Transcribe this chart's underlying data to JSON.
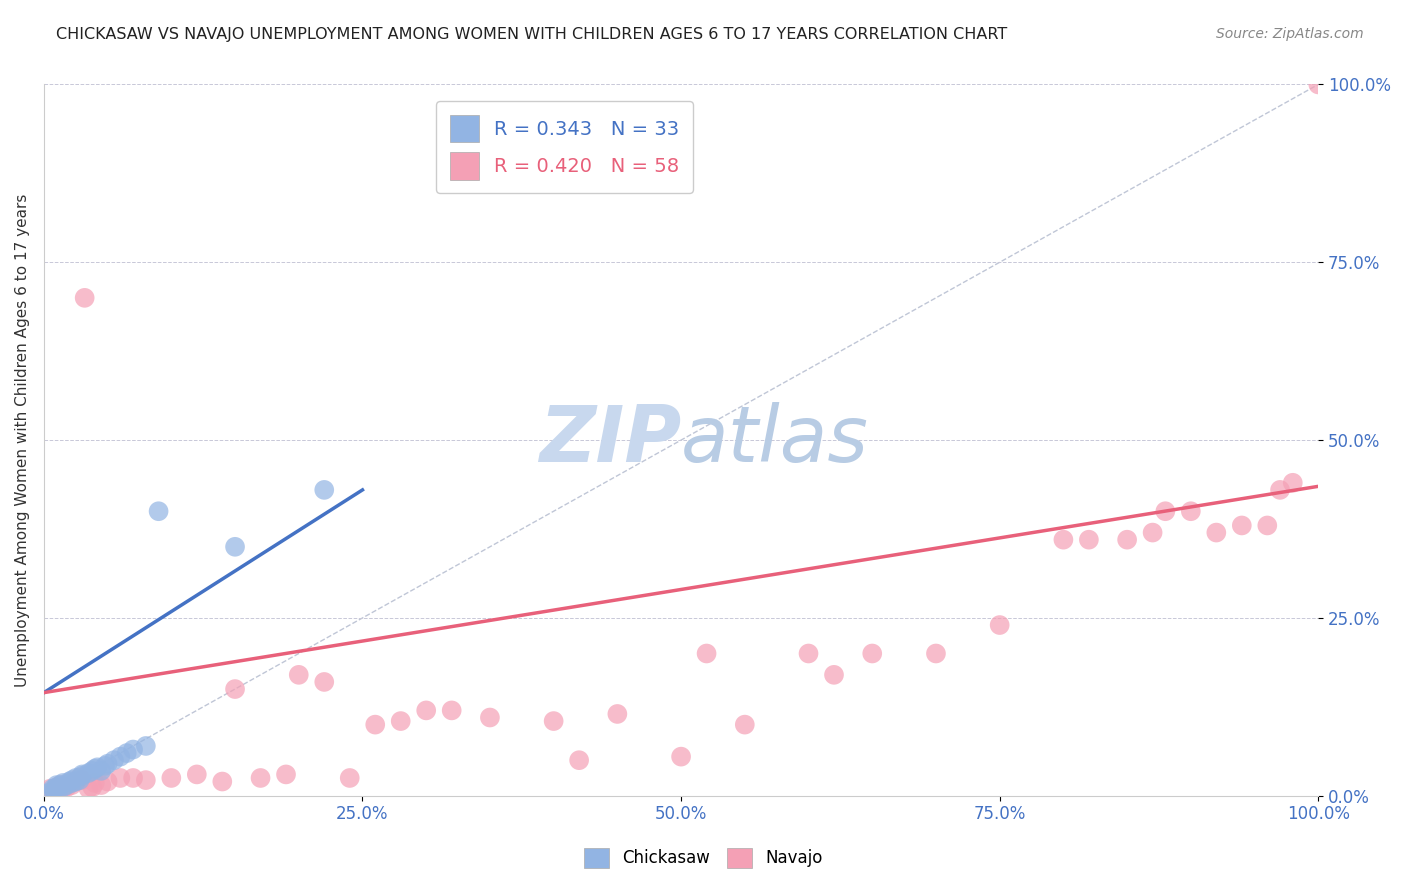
{
  "title": "CHICKASAW VS NAVAJO UNEMPLOYMENT AMONG WOMEN WITH CHILDREN AGES 6 TO 17 YEARS CORRELATION CHART",
  "source_text": "Source: ZipAtlas.com",
  "ylabel": "Unemployment Among Women with Children Ages 6 to 17 years",
  "xlim": [
    0,
    1
  ],
  "ylim": [
    0,
    1
  ],
  "xticks": [
    0.0,
    0.25,
    0.5,
    0.75,
    1.0
  ],
  "yticks": [
    0.0,
    0.25,
    0.5,
    0.75,
    1.0
  ],
  "xticklabels": [
    "0.0%",
    "25.0%",
    "50.0%",
    "75.0%",
    "100.0%"
  ],
  "yticklabels": [
    "0.0%",
    "25.0%",
    "50.0%",
    "75.0%",
    "100.0%"
  ],
  "chickasaw_color": "#92b4e3",
  "navajo_color": "#f4a0b5",
  "chickasaw_line_color": "#4472c4",
  "navajo_line_color": "#e8607a",
  "diagonal_color": "#b0b8cc",
  "watermark_color": "#d0dcee",
  "legend_R1": "R = 0.343",
  "legend_N1": "N = 33",
  "legend_R2": "R = 0.420",
  "legend_N2": "N = 58",
  "chickasaw_x": [
    0.005,
    0.007,
    0.008,
    0.01,
    0.01,
    0.012,
    0.013,
    0.015,
    0.015,
    0.018,
    0.02,
    0.022,
    0.022,
    0.025,
    0.025,
    0.028,
    0.03,
    0.03,
    0.035,
    0.038,
    0.04,
    0.042,
    0.045,
    0.048,
    0.05,
    0.055,
    0.06,
    0.065,
    0.07,
    0.08,
    0.09,
    0.15,
    0.22
  ],
  "chickasaw_y": [
    0.005,
    0.01,
    0.008,
    0.012,
    0.015,
    0.01,
    0.015,
    0.012,
    0.018,
    0.015,
    0.02,
    0.018,
    0.022,
    0.02,
    0.025,
    0.022,
    0.028,
    0.03,
    0.032,
    0.035,
    0.038,
    0.04,
    0.035,
    0.042,
    0.045,
    0.05,
    0.055,
    0.06,
    0.065,
    0.07,
    0.4,
    0.35,
    0.43
  ],
  "navajo_x": [
    0.005,
    0.008,
    0.01,
    0.012,
    0.013,
    0.015,
    0.018,
    0.02,
    0.022,
    0.025,
    0.028,
    0.03,
    0.032,
    0.035,
    0.038,
    0.04,
    0.045,
    0.05,
    0.06,
    0.07,
    0.08,
    0.1,
    0.12,
    0.14,
    0.15,
    0.17,
    0.19,
    0.2,
    0.22,
    0.24,
    0.26,
    0.28,
    0.3,
    0.32,
    0.35,
    0.4,
    0.42,
    0.45,
    0.5,
    0.52,
    0.55,
    0.6,
    0.62,
    0.65,
    0.7,
    0.75,
    0.8,
    0.82,
    0.85,
    0.87,
    0.88,
    0.9,
    0.92,
    0.94,
    0.96,
    0.97,
    0.98,
    1.0
  ],
  "navajo_y": [
    0.01,
    0.005,
    0.012,
    0.008,
    0.015,
    0.01,
    0.012,
    0.018,
    0.015,
    0.02,
    0.025,
    0.022,
    0.7,
    0.01,
    0.012,
    0.018,
    0.015,
    0.02,
    0.025,
    0.025,
    0.022,
    0.025,
    0.03,
    0.02,
    0.15,
    0.025,
    0.03,
    0.17,
    0.16,
    0.025,
    0.1,
    0.105,
    0.12,
    0.12,
    0.11,
    0.105,
    0.05,
    0.115,
    0.055,
    0.2,
    0.1,
    0.2,
    0.17,
    0.2,
    0.2,
    0.24,
    0.36,
    0.36,
    0.36,
    0.37,
    0.4,
    0.4,
    0.37,
    0.38,
    0.38,
    0.43,
    0.44,
    1.0
  ],
  "background_color": "#ffffff"
}
